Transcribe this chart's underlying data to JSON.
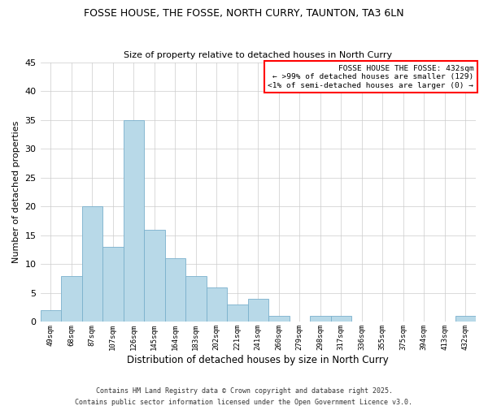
{
  "title": "FOSSE HOUSE, THE FOSSE, NORTH CURRY, TAUNTON, TA3 6LN",
  "subtitle": "Size of property relative to detached houses in North Curry",
  "xlabel": "Distribution of detached houses by size in North Curry",
  "ylabel": "Number of detached properties",
  "bar_color": "#b8d9e8",
  "bar_edge_color": "#7ab0cc",
  "bin_labels": [
    "49sqm",
    "68sqm",
    "87sqm",
    "107sqm",
    "126sqm",
    "145sqm",
    "164sqm",
    "183sqm",
    "202sqm",
    "221sqm",
    "241sqm",
    "260sqm",
    "279sqm",
    "298sqm",
    "317sqm",
    "336sqm",
    "355sqm",
    "375sqm",
    "394sqm",
    "413sqm",
    "432sqm"
  ],
  "bar_heights": [
    2,
    8,
    20,
    13,
    35,
    16,
    11,
    8,
    6,
    3,
    4,
    1,
    0,
    1,
    1,
    0,
    0,
    0,
    0,
    0,
    1
  ],
  "ylim": [
    0,
    45
  ],
  "yticks": [
    0,
    5,
    10,
    15,
    20,
    25,
    30,
    35,
    40,
    45
  ],
  "annotation_line1": "FOSSE HOUSE THE FOSSE: 432sqm",
  "annotation_line2": "← >99% of detached houses are smaller (129)",
  "annotation_line3": "<1% of semi-detached houses are larger (0) →",
  "annotation_box_color": "#ff0000",
  "footnote1": "Contains HM Land Registry data © Crown copyright and database right 2025.",
  "footnote2": "Contains public sector information licensed under the Open Government Licence v3.0.",
  "bg_color": "#ffffff",
  "grid_color": "#cccccc"
}
